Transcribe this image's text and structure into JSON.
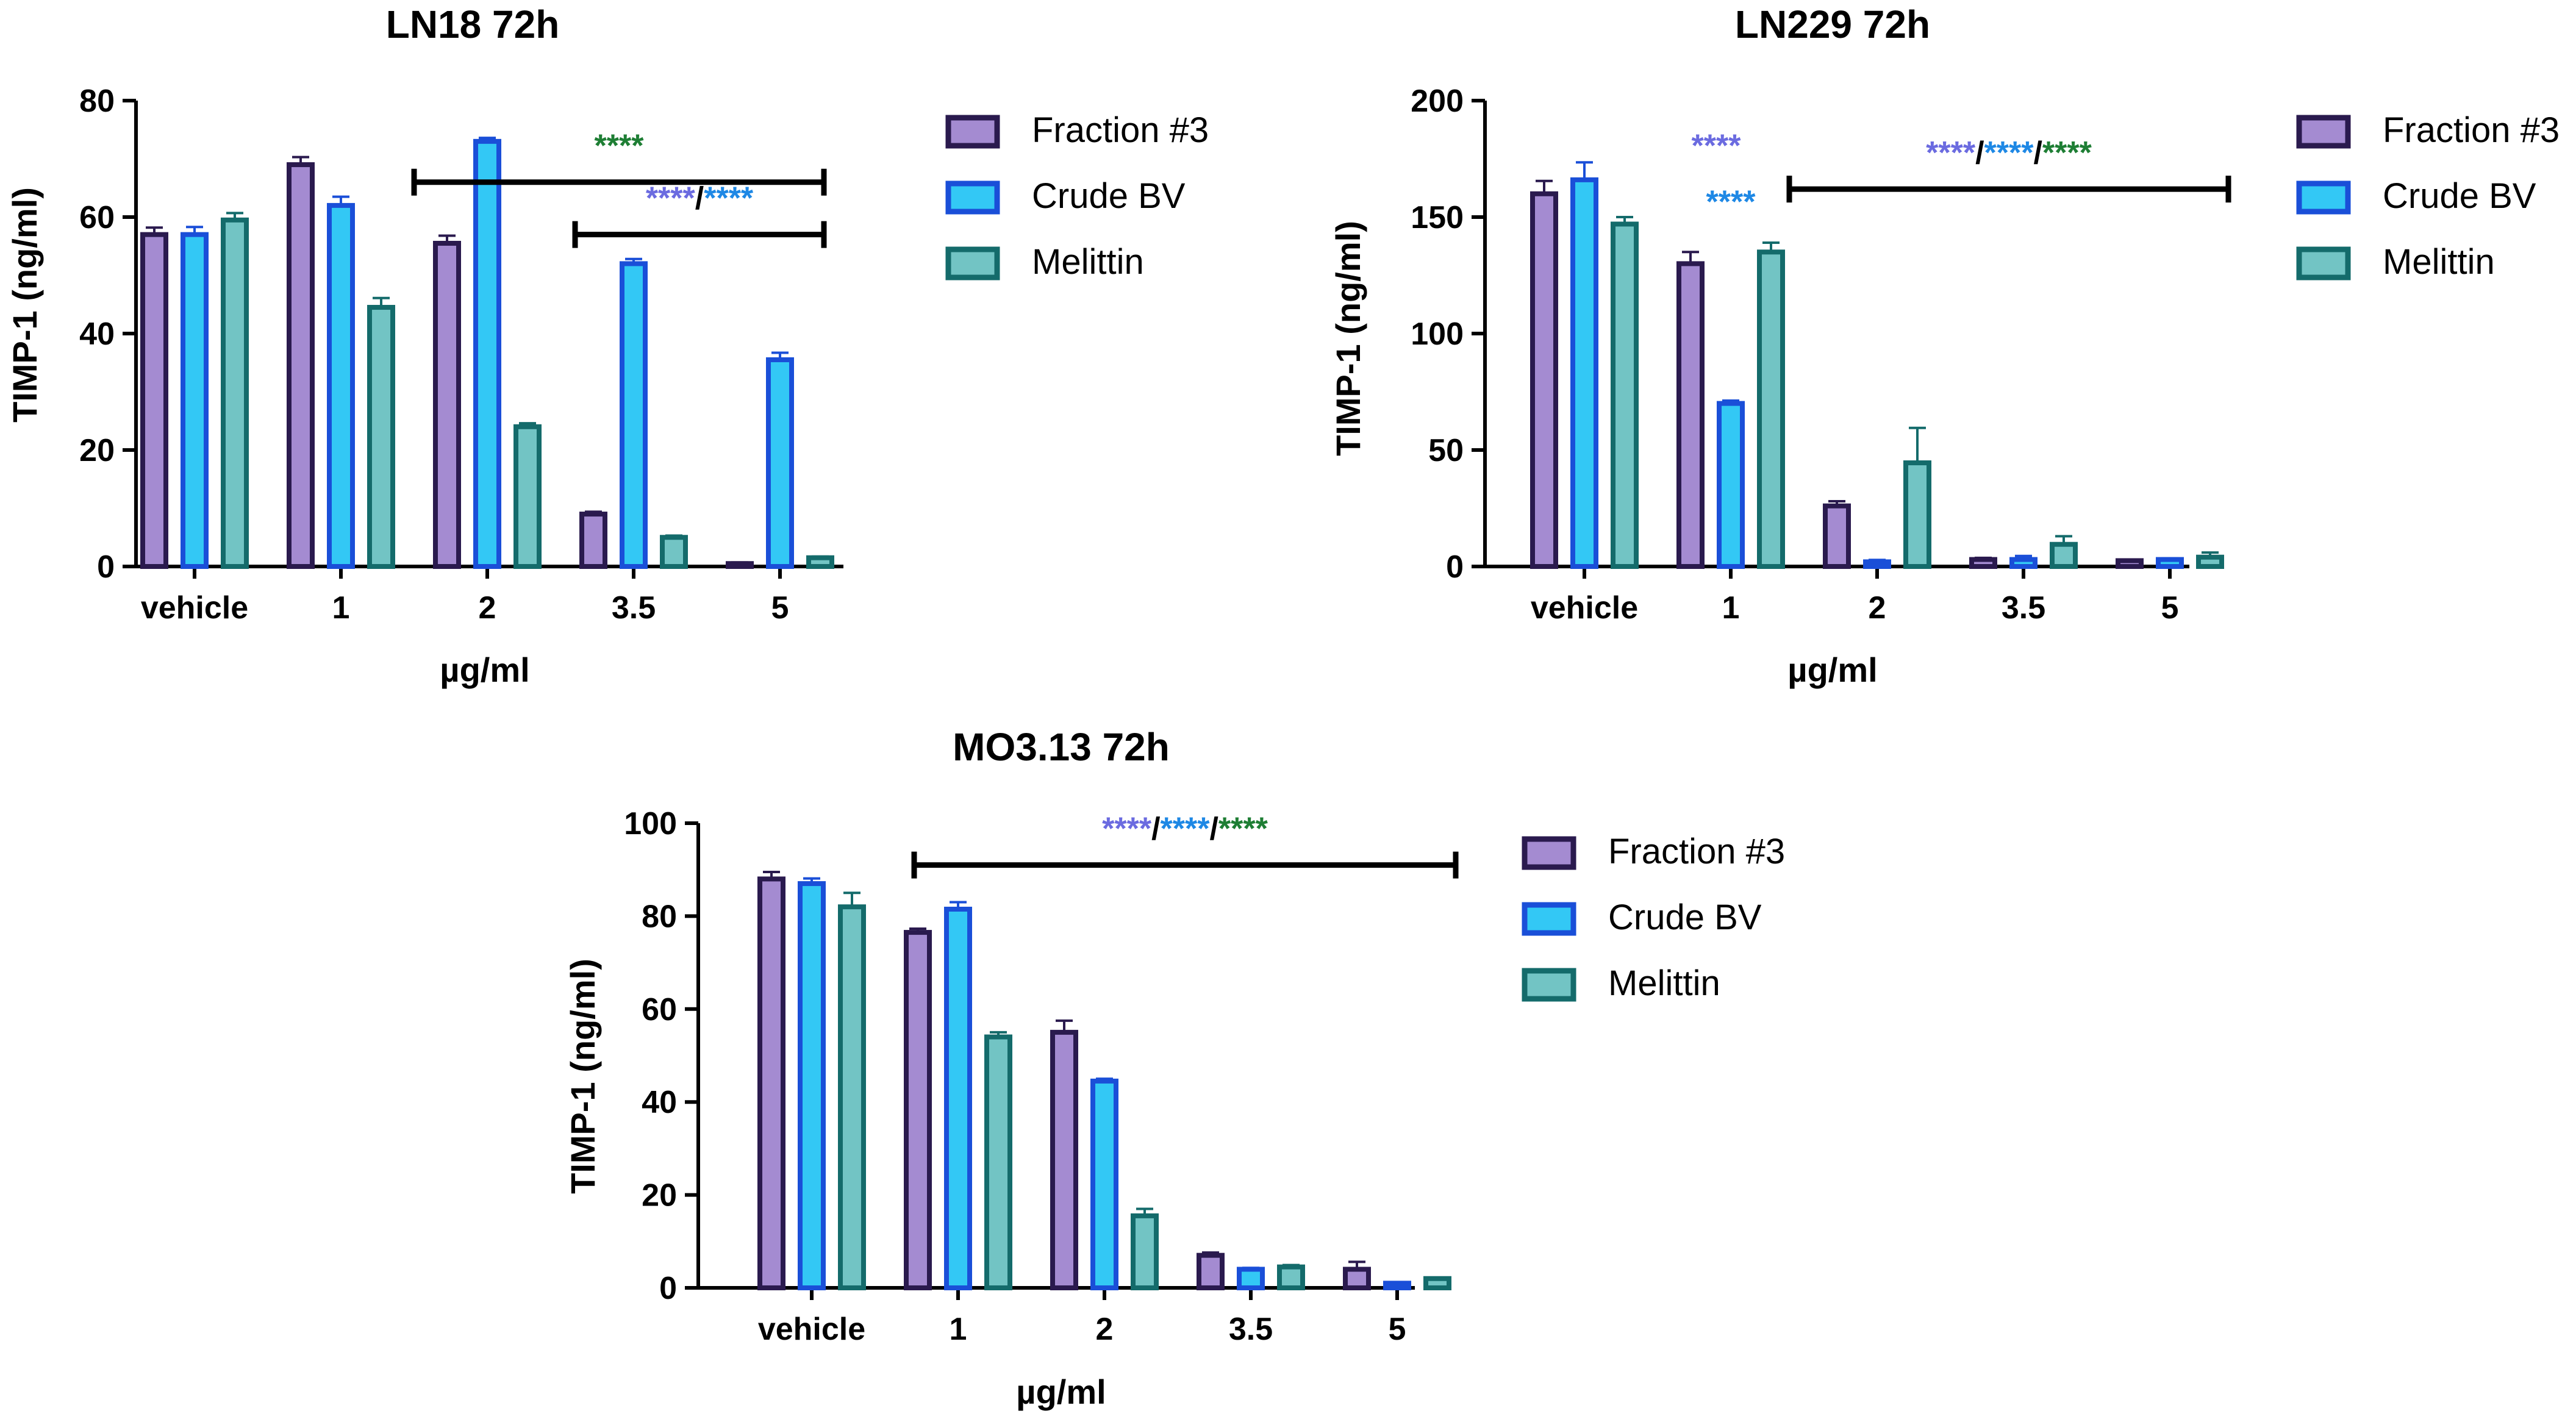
{
  "colors": {
    "fraction3_fill": "#a48bd1",
    "fraction3_edge": "#2a1a4e",
    "crude_fill": "#33c8f5",
    "crude_edge": "#1a4fd8",
    "melittin_fill": "#72c4c4",
    "melittin_edge": "#146b6b",
    "star_purple": "#6b6be0",
    "star_blue": "#1e88e5",
    "star_green": "#1e7e34",
    "axis": "#000000"
  },
  "chart_data": [
    {
      "type": "bar",
      "title": "LN18 72h",
      "xlabel": "µg/ml",
      "ylabel": "TIMP-1 (ng/ml)",
      "ylim": [
        0,
        80
      ],
      "yticks": [
        "0",
        "20",
        "40",
        "60",
        "80"
      ],
      "categories": [
        "vehicle",
        "1",
        "2",
        "3.5",
        "5"
      ],
      "series": [
        {
          "name": "Fraction #3",
          "values": [
            57,
            69,
            55.5,
            9,
            0.5
          ],
          "errors": [
            1.2,
            1.3,
            1.3,
            0.4,
            0.2
          ]
        },
        {
          "name": "Crude BV",
          "values": [
            57,
            62,
            73,
            52,
            35.5
          ],
          "errors": [
            1.3,
            1.5,
            0.6,
            0.8,
            1.2
          ]
        },
        {
          "name": "Melittin",
          "values": [
            59.5,
            44.5,
            24,
            5,
            1.5
          ],
          "errors": [
            1.2,
            1.6,
            0.6,
            0.3,
            0.2
          ]
        }
      ],
      "annotations": [
        {
          "label": "Fraction #3 / Crude BV vs vehicle, 2 to 5",
          "bar_from": 1.5,
          "bar_to": 4.3,
          "level": 66,
          "parts": [
            {
              "text": "****",
              "color": "#1e7e34"
            }
          ]
        },
        {
          "label": "3.5 to 5",
          "bar_from": 2.6,
          "bar_to": 4.3,
          "level": 57,
          "parts": [
            {
              "text": "****",
              "color": "#6b6be0"
            },
            {
              "text": "/",
              "color": "#000000"
            },
            {
              "text": "****",
              "color": "#1e88e5"
            }
          ]
        }
      ],
      "legend": [
        "Fraction #3",
        "Crude BV",
        "Melittin"
      ]
    },
    {
      "type": "bar",
      "title": "LN229 72h",
      "xlabel": "µg/ml",
      "ylabel": "TIMP-1 (ng/ml)",
      "ylim": [
        0,
        200
      ],
      "yticks": [
        "0",
        "50",
        "100",
        "150",
        "200"
      ],
      "categories": [
        "vehicle",
        "1",
        "2",
        "3.5",
        "5"
      ],
      "series": [
        {
          "name": "Fraction #3",
          "values": [
            160,
            130,
            26,
            3,
            2.5
          ],
          "errors": [
            5.5,
            5,
            2,
            0.7,
            0.5
          ]
        },
        {
          "name": "Crude BV",
          "values": [
            166,
            70,
            2,
            3,
            3
          ],
          "errors": [
            7.5,
            1.2,
            0.8,
            1.5,
            0.5
          ]
        },
        {
          "name": "Melittin",
          "values": [
            147,
            135,
            44.5,
            9.5,
            4
          ],
          "errors": [
            3,
            4,
            15,
            3.5,
            2
          ]
        }
      ],
      "annotations": [
        {
          "label": "Fraction #3 at 1",
          "at": 0.9,
          "level": 176,
          "parts": [
            {
              "text": "****",
              "color": "#6b6be0"
            }
          ]
        },
        {
          "label": "Crude BV at 1",
          "at": 1.0,
          "level": 152,
          "parts": [
            {
              "text": "****",
              "color": "#1e88e5"
            }
          ]
        },
        {
          "label": "2 to 5",
          "bar_from": 1.4,
          "bar_to": 4.4,
          "level": 162,
          "parts": [
            {
              "text": "****",
              "color": "#6b6be0"
            },
            {
              "text": "/",
              "color": "#000000"
            },
            {
              "text": "****",
              "color": "#1e88e5"
            },
            {
              "text": "/",
              "color": "#000000"
            },
            {
              "text": "****",
              "color": "#1e7e34"
            }
          ]
        }
      ],
      "legend": [
        "Fraction #3",
        "Crude BV",
        "Melittin"
      ]
    },
    {
      "type": "bar",
      "title": "MO3.13 72h",
      "xlabel": "µg/ml",
      "ylabel": "TIMP-1 (ng/ml)",
      "ylim": [
        0,
        100
      ],
      "yticks": [
        "0",
        "20",
        "40",
        "60",
        "80",
        "100"
      ],
      "categories": [
        "vehicle",
        "1",
        "2",
        "3.5",
        "5"
      ],
      "series": [
        {
          "name": "Fraction #3",
          "values": [
            88,
            76.5,
            55,
            7,
            4
          ],
          "errors": [
            1.5,
            0.8,
            2.5,
            0.6,
            1.6
          ]
        },
        {
          "name": "Crude BV",
          "values": [
            87,
            81.5,
            44.5,
            4,
            1
          ],
          "errors": [
            1.1,
            1.5,
            0.5,
            0.3,
            0.2
          ]
        },
        {
          "name": "Melittin",
          "values": [
            82,
            54,
            15.5,
            4.5,
            2
          ],
          "errors": [
            3,
            1,
            1.5,
            0.4,
            0.2
          ]
        }
      ],
      "annotations": [
        {
          "label": "1 to 5",
          "bar_from": 0.7,
          "bar_to": 4.4,
          "level": 91,
          "parts": [
            {
              "text": "****",
              "color": "#6b6be0"
            },
            {
              "text": "/",
              "color": "#000000"
            },
            {
              "text": "****",
              "color": "#1e88e5"
            },
            {
              "text": "/",
              "color": "#000000"
            },
            {
              "text": "****",
              "color": "#1e7e34"
            }
          ]
        }
      ],
      "legend": [
        "Fraction #3",
        "Crude BV",
        "Melittin"
      ]
    }
  ]
}
